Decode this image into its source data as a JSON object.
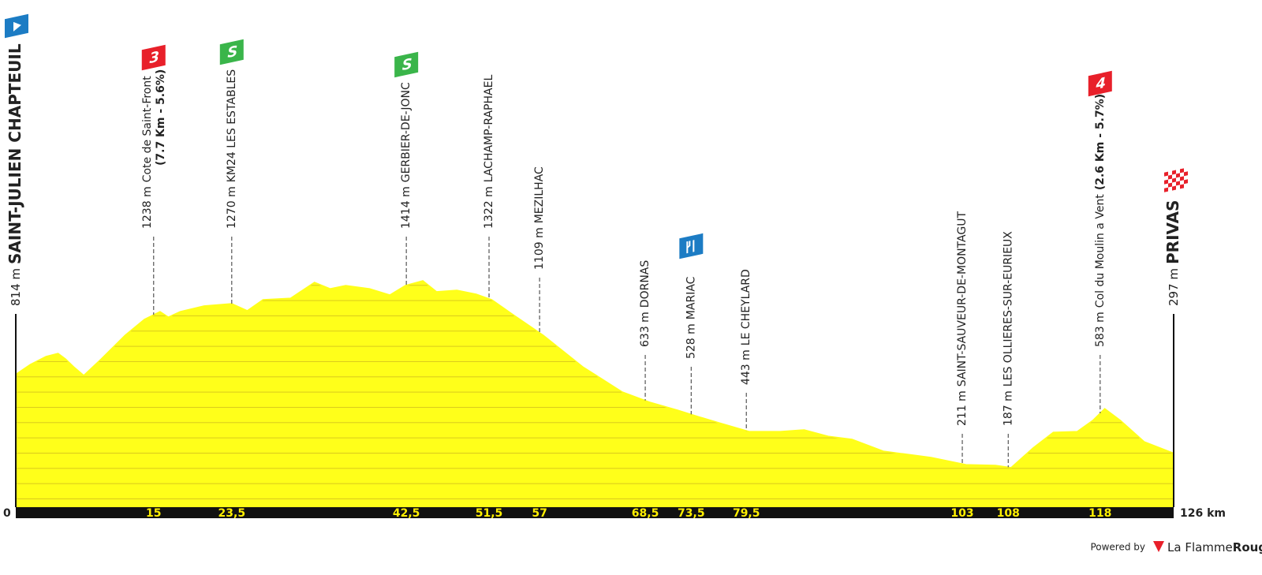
{
  "chart_data": {
    "type": "area",
    "color": "#ffff1a",
    "xlim": [
      0,
      126
    ],
    "ylim": [
      0,
      1700
    ],
    "x": [
      0,
      1.6,
      3.3,
      4.6,
      5.4,
      6.3,
      7.4,
      9.3,
      11.9,
      14,
      15.7,
      16.6,
      17.9,
      20.5,
      23.5,
      25.2,
      26.9,
      29.9,
      32.5,
      34.2,
      35.9,
      38.5,
      40.7,
      42.4,
      44.3,
      45.8,
      48,
      50.1,
      51.8,
      54,
      57.4,
      61.7,
      66,
      69,
      72,
      74.2,
      76.8,
      79.8,
      83.2,
      85.8,
      88.4,
      91,
      94.4,
      99.6,
      103.4,
      106.6,
      108.3,
      110.7,
      112.9,
      115.5,
      117.2,
      118.5,
      120.2,
      122.8,
      126
    ],
    "values": [
      814,
      879,
      931,
      951,
      915,
      863,
      807,
      915,
      1070,
      1174,
      1225,
      1189,
      1225,
      1262,
      1277,
      1231,
      1303,
      1313,
      1417,
      1375,
      1396,
      1375,
      1334,
      1396,
      1427,
      1355,
      1365,
      1339,
      1303,
      1210,
      1070,
      863,
      698,
      631,
      579,
      538,
      491,
      439,
      439,
      450,
      408,
      388,
      310,
      269,
      222,
      217,
      202,
      331,
      434,
      439,
      512,
      589,
      512,
      372,
      297
    ],
    "xticks": [
      0,
      15,
      {
        "value": 23.5,
        "label": "23,5"
      },
      {
        "value": 42.5,
        "label": "42,5"
      },
      {
        "value": 51.5,
        "label": "51,5"
      },
      57,
      {
        "value": 68.5,
        "label": "68,5"
      },
      {
        "value": 73.5,
        "label": "73,5"
      },
      {
        "value": 79.5,
        "label": "79,5"
      },
      103,
      108,
      118,
      {
        "value": 126,
        "label": "126 km"
      }
    ],
    "waypoints": [
      {
        "alt": "814 m",
        "name": "SAINT-JULIEN CHAPTEUIL"
      },
      {
        "alt": "1238 m",
        "name": "Cote de Saint-Front",
        "detail": "(7.7 Km - 5.6%)",
        "badge": {
          "text": "3",
          "color": "#e8202a"
        }
      },
      {
        "alt": "1270 m",
        "name": "KM24 LES ESTABLES",
        "badge": {
          "text": "S",
          "color": "#3ab54a"
        }
      },
      {
        "alt": "1414 m",
        "name": "GERBIER-DE-JONC",
        "badge": {
          "text": "S",
          "color": "#3ab54a"
        }
      },
      {
        "alt": "1322 m",
        "name": "LACHAMP-RAPHAEL"
      },
      {
        "alt": "1109 m",
        "name": "MEZILHAC"
      },
      {
        "alt": "633 m",
        "name": "DORNAS"
      },
      {
        "alt": "528 m",
        "name": "MARIAC"
      },
      {
        "alt": "443 m",
        "name": "LE CHEYLARD"
      },
      {
        "alt": "211 m",
        "name": "SAINT-SAUVEUR-DE-MONTAGUT"
      },
      {
        "alt": "187 m",
        "name": "LES OLLIERES-SUR-EURIEUX"
      },
      {
        "alt": "583 m",
        "name": "Col du Moulin a Vent",
        "detail": "(2.6 Km - 5.7%)",
        "badge": {
          "text": "4",
          "color": "#e8202a"
        }
      },
      {
        "alt": "297 m",
        "name": "PRIVAS"
      }
    ]
  },
  "footer": {
    "powered": "Powered by",
    "brand": "La Flamme",
    "brand_bold": "Rouge"
  }
}
